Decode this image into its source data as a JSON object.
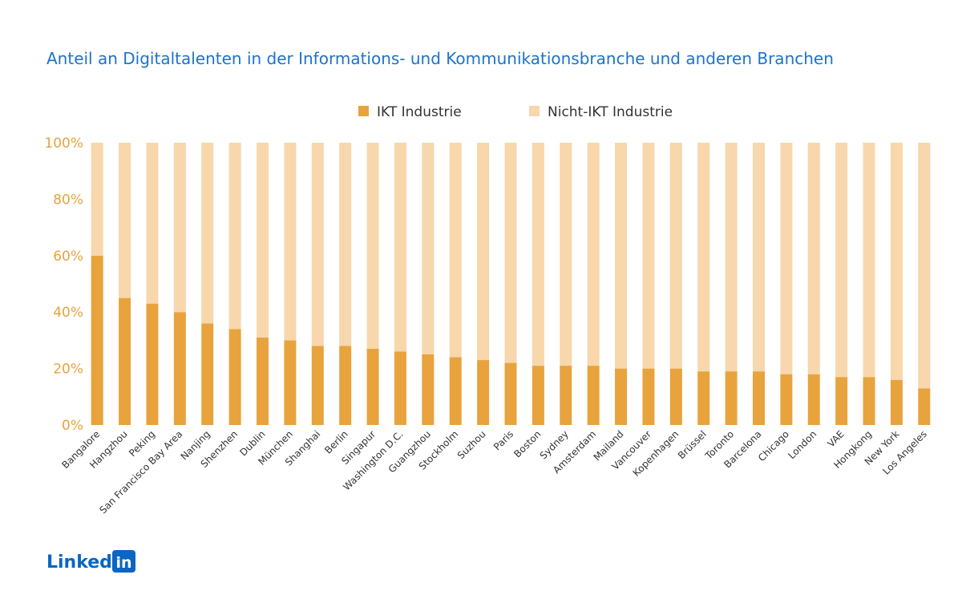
{
  "chart_data": {
    "type": "bar",
    "stacked": true,
    "title": "Anteil an Digitaltalenten in der Informations- und Kommunikationsbranche und anderen Branchen",
    "categories": [
      "Bangalore",
      "Hangzhou",
      "Peking",
      "San Francisco Bay Area",
      "Nanjing",
      "Shenzhen",
      "Dublin",
      "München",
      "Shanghai",
      "Berlin",
      "Singapur",
      "Washington D.C.",
      "Guangzhou",
      "Stockholm",
      "Suzhou",
      "Paris",
      "Boston",
      "Sydney",
      "Amsterdam",
      "Mailand",
      "Vancouver",
      "Kopenhagen",
      "Brüssel",
      "Toronto",
      "Barcelona",
      "Chicago",
      "London",
      "VAE",
      "Hongkong",
      "New York",
      "Los Angeles"
    ],
    "series": [
      {
        "name": "IKT Industrie",
        "color": "#e8a33d",
        "values": [
          60,
          45,
          43,
          40,
          36,
          34,
          31,
          30,
          28,
          28,
          27,
          26,
          25,
          24,
          23,
          22,
          21,
          21,
          21,
          20,
          20,
          20,
          19,
          19,
          19,
          18,
          18,
          17,
          17,
          16,
          13
        ]
      },
      {
        "name": "Nicht-IKT Industrie",
        "color": "#f7d7ab",
        "values": [
          40,
          55,
          57,
          60,
          64,
          66,
          69,
          70,
          72,
          72,
          73,
          74,
          75,
          76,
          77,
          78,
          79,
          79,
          79,
          80,
          80,
          80,
          81,
          81,
          81,
          82,
          82,
          83,
          83,
          84,
          87
        ]
      }
    ],
    "yticks": [
      "0%",
      "20%",
      "40%",
      "60%",
      "80%",
      "100%"
    ],
    "ylim": [
      0,
      100
    ],
    "legend_position": "top-center",
    "grid": false
  },
  "logo": {
    "word": "Linked",
    "badge": "in"
  }
}
